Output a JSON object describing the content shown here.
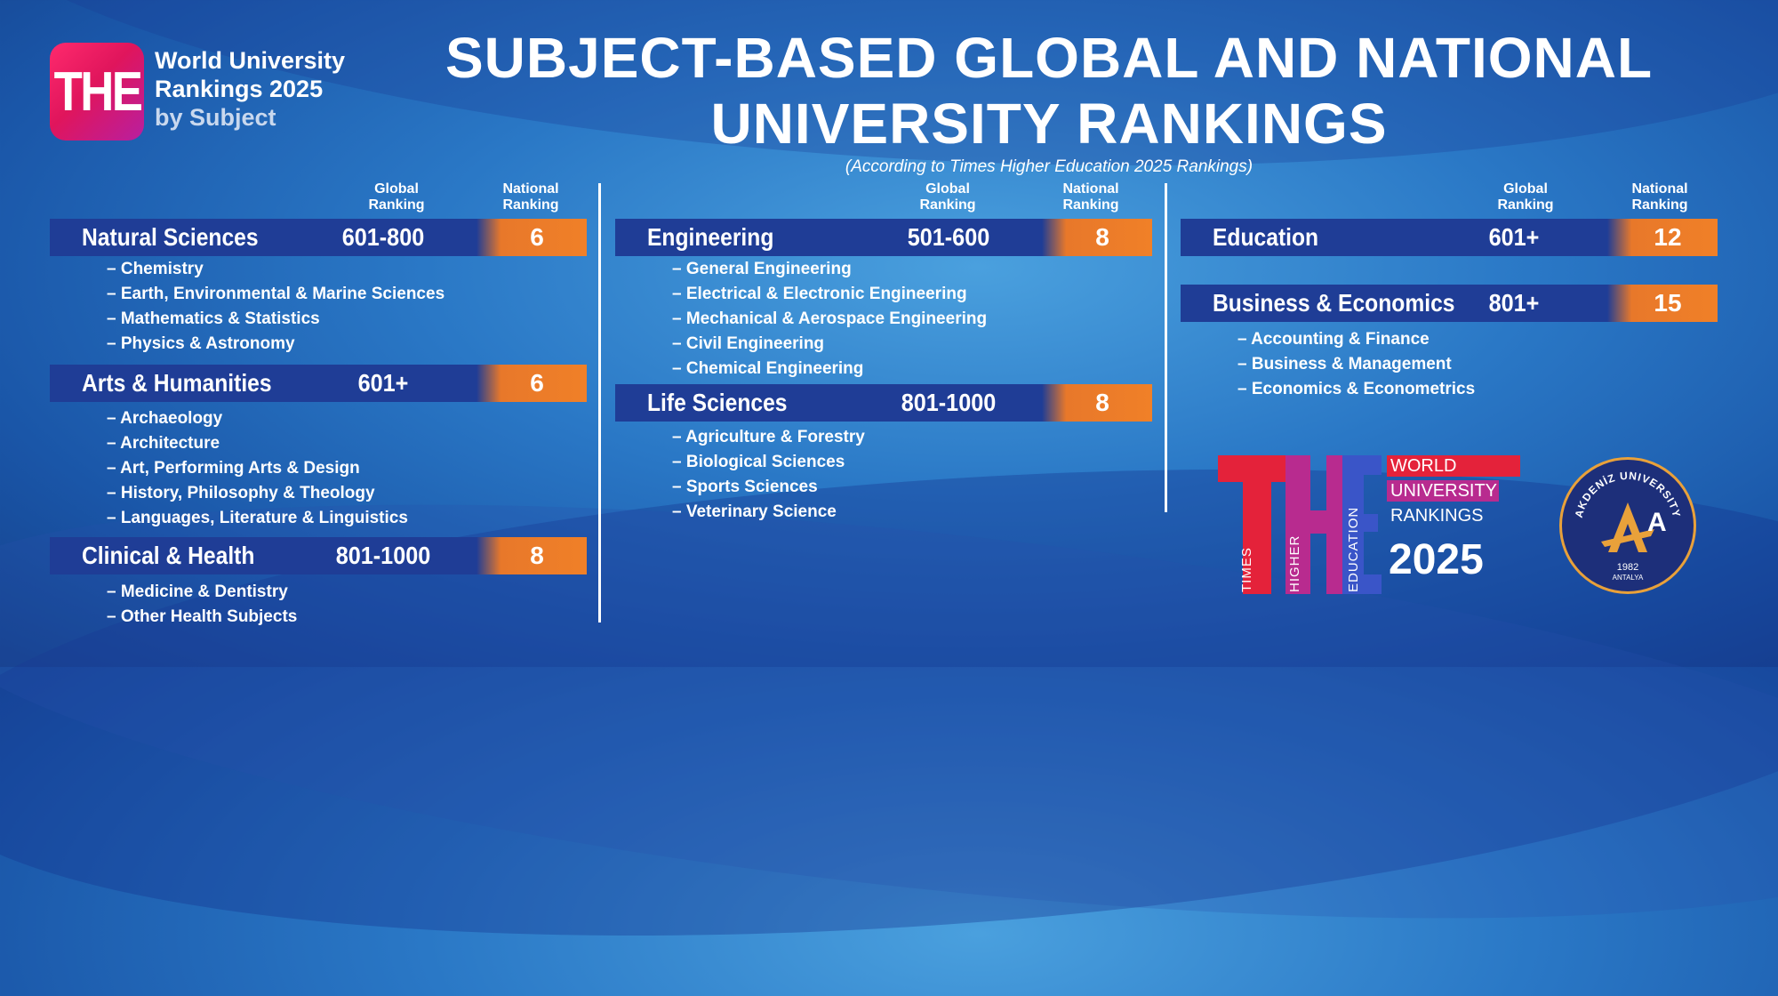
{
  "logo": {
    "badge": "THE",
    "line1": "World University",
    "line2": "Rankings 2025",
    "line3": "by Subject"
  },
  "title_line1": "SUBJECT-BASED GLOBAL AND NATIONAL",
  "title_line2": "UNIVERSITY RANKINGS",
  "subtitle": "(According to Times Higher Education 2025 Rankings)",
  "header": {
    "global": [
      "Global",
      "Ranking"
    ],
    "national": [
      "National",
      "Ranking"
    ]
  },
  "columns": [
    {
      "groups": [
        {
          "name": "Natural Sciences",
          "global": "601-800",
          "national": "6",
          "items": [
            "– Chemistry",
            "– Earth, Environmental & Marine Sciences",
            "– Mathematics & Statistics",
            "– Physics & Astronomy"
          ]
        },
        {
          "name": "Arts & Humanities",
          "global": "601+",
          "national": "6",
          "items": [
            "– Archaeology",
            "– Architecture",
            "– Art, Performing Arts & Design",
            "– History, Philosophy & Theology",
            "– Languages, Literature & Linguistics"
          ]
        },
        {
          "name": "Clinical & Health",
          "global": "801-1000",
          "national": "8",
          "items": [
            "– Medicine & Dentistry",
            "– Other Health Subjects"
          ]
        }
      ]
    },
    {
      "groups": [
        {
          "name": "Engineering",
          "global": "501-600",
          "national": "8",
          "items": [
            "– General Engineering",
            "– Electrical & Electronic Engineering",
            "– Mechanical & Aerospace Engineering",
            "– Civil Engineering",
            "– Chemical Engineering"
          ]
        },
        {
          "name": "Life Sciences",
          "global": "801-1000",
          "national": "8",
          "items": [
            "– Agriculture & Forestry",
            "– Biological Sciences",
            "– Sports Sciences",
            "– Veterinary Science"
          ]
        }
      ]
    },
    {
      "groups": [
        {
          "name": "Education",
          "global": "601+",
          "national": "12",
          "items": []
        },
        {
          "name": "Business & Economics",
          "global": "801+",
          "national": "15",
          "items": [
            "– Accounting & Finance",
            "– Business & Management",
            "– Economics & Econometrics"
          ]
        }
      ]
    }
  ],
  "the_logo": {
    "times": "TIMES",
    "higher": "HIGHER",
    "education": "EDUCATION",
    "world": "WORLD",
    "university": "UNIVERSITY",
    "rankings": "RANKINGS",
    "year": "2025"
  },
  "seal": {
    "name": "AKDENİZ UNIVERSITY",
    "year": "1982",
    "city": "ANTALYA",
    "initial": "A"
  },
  "colors": {
    "bar": "#1f3d96",
    "national": "#f08028",
    "background": "#2a78c6",
    "accent_red": "#e4223a",
    "accent_purple": "#b82b8f"
  }
}
